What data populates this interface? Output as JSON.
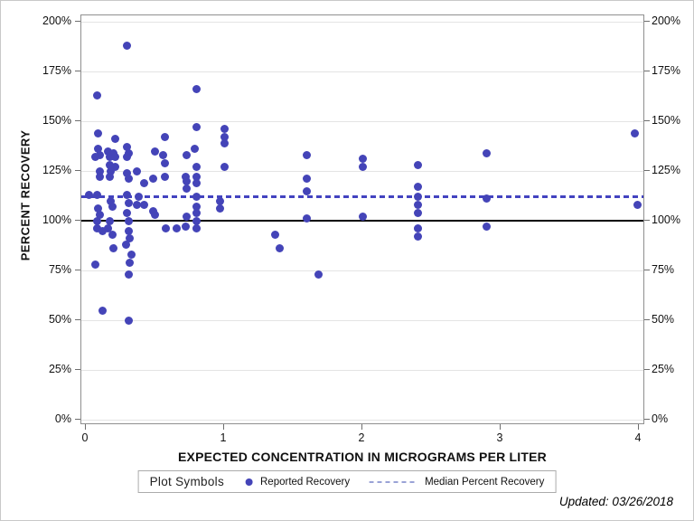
{
  "figure": {
    "updated_note": "Updated: 03/26/2018",
    "legend": {
      "title": "Plot Symbols",
      "items": [
        {
          "label": "Reported Recovery",
          "marker": "filled-circle"
        },
        {
          "label": "Median Percent Recovery",
          "marker": "dashed-line"
        }
      ]
    },
    "colors": {
      "dot": "#4444b8",
      "median_line": "#4343c0",
      "reference_line": "#000000",
      "legend_dash": "#9aa3d6",
      "grid": "#e4e4e4",
      "frame": "#8f8f8f"
    }
  },
  "chart_data": {
    "type": "scatter",
    "title": "",
    "xlabel": "EXPECTED CONCENTRATION IN MICROGRAMS PER LITER",
    "ylabel": "PERCENT RECOVERY",
    "xlim": [
      0,
      4
    ],
    "ylim": [
      0,
      200
    ],
    "x_ticks": [
      0,
      1,
      2,
      3,
      4
    ],
    "y_ticks": [
      0,
      25,
      50,
      75,
      100,
      125,
      150,
      175,
      200
    ],
    "y_tick_suffix": "%",
    "grid": "horizontal",
    "legend_position": "bottom",
    "reference_line_percent": 100,
    "median_line_percent": 112,
    "series": [
      {
        "name": "Reported Recovery",
        "points": [
          [
            0.08,
            163
          ],
          [
            0.09,
            144
          ],
          [
            0.09,
            136
          ],
          [
            0.1,
            133
          ],
          [
            0.07,
            132
          ],
          [
            0.1,
            125
          ],
          [
            0.1,
            122
          ],
          [
            0.02,
            113
          ],
          [
            0.08,
            113
          ],
          [
            0.09,
            106
          ],
          [
            0.1,
            103
          ],
          [
            0.08,
            100
          ],
          [
            0.08,
            96
          ],
          [
            0.12,
            95
          ],
          [
            0.07,
            78
          ],
          [
            0.12,
            55
          ],
          [
            0.21,
            141
          ],
          [
            0.16,
            135
          ],
          [
            0.2,
            134
          ],
          [
            0.17,
            132
          ],
          [
            0.21,
            132
          ],
          [
            0.17,
            128
          ],
          [
            0.21,
            127
          ],
          [
            0.18,
            125
          ],
          [
            0.17,
            122
          ],
          [
            0.18,
            110
          ],
          [
            0.19,
            107
          ],
          [
            0.17,
            100
          ],
          [
            0.16,
            96
          ],
          [
            0.19,
            93
          ],
          [
            0.2,
            86
          ],
          [
            0.3,
            188
          ],
          [
            0.3,
            137
          ],
          [
            0.31,
            134
          ],
          [
            0.3,
            132
          ],
          [
            0.3,
            124
          ],
          [
            0.31,
            121
          ],
          [
            0.3,
            113
          ],
          [
            0.31,
            109
          ],
          [
            0.3,
            104
          ],
          [
            0.31,
            100
          ],
          [
            0.31,
            95
          ],
          [
            0.32,
            91
          ],
          [
            0.29,
            88
          ],
          [
            0.33,
            83
          ],
          [
            0.32,
            79
          ],
          [
            0.31,
            73
          ],
          [
            0.31,
            50
          ],
          [
            0.37,
            125
          ],
          [
            0.42,
            119
          ],
          [
            0.38,
            112
          ],
          [
            0.37,
            108
          ],
          [
            0.42,
            108
          ],
          [
            0.5,
            135
          ],
          [
            0.49,
            121
          ],
          [
            0.49,
            105
          ],
          [
            0.5,
            103
          ],
          [
            0.57,
            142
          ],
          [
            0.56,
            133
          ],
          [
            0.57,
            129
          ],
          [
            0.57,
            122
          ],
          [
            0.58,
            96
          ],
          [
            0.66,
            96
          ],
          [
            0.73,
            133
          ],
          [
            0.72,
            122
          ],
          [
            0.73,
            120
          ],
          [
            0.73,
            116
          ],
          [
            0.73,
            102
          ],
          [
            0.72,
            97
          ],
          [
            0.8,
            166
          ],
          [
            0.8,
            147
          ],
          [
            0.79,
            136
          ],
          [
            0.8,
            127
          ],
          [
            0.8,
            122
          ],
          [
            0.8,
            119
          ],
          [
            0.8,
            112
          ],
          [
            0.8,
            107
          ],
          [
            0.8,
            104
          ],
          [
            0.8,
            100
          ],
          [
            0.8,
            96
          ],
          [
            1.0,
            146
          ],
          [
            1.0,
            142
          ],
          [
            1.0,
            139
          ],
          [
            1.0,
            127
          ],
          [
            0.97,
            110
          ],
          [
            0.97,
            106
          ],
          [
            1.37,
            93
          ],
          [
            1.4,
            86
          ],
          [
            1.6,
            133
          ],
          [
            1.6,
            121
          ],
          [
            1.6,
            115
          ],
          [
            1.6,
            101
          ],
          [
            1.68,
            73
          ],
          [
            2.0,
            131
          ],
          [
            2.0,
            127
          ],
          [
            2.0,
            102
          ],
          [
            2.4,
            128
          ],
          [
            2.4,
            117
          ],
          [
            2.4,
            112
          ],
          [
            2.4,
            108
          ],
          [
            2.4,
            104
          ],
          [
            2.4,
            96
          ],
          [
            2.4,
            92
          ],
          [
            2.9,
            134
          ],
          [
            2.9,
            111
          ],
          [
            2.9,
            97
          ],
          [
            3.97,
            144
          ],
          [
            3.99,
            108
          ]
        ]
      },
      {
        "name": "Median Percent Recovery",
        "style": "dashed-horizontal-line",
        "percent": 112
      }
    ]
  }
}
